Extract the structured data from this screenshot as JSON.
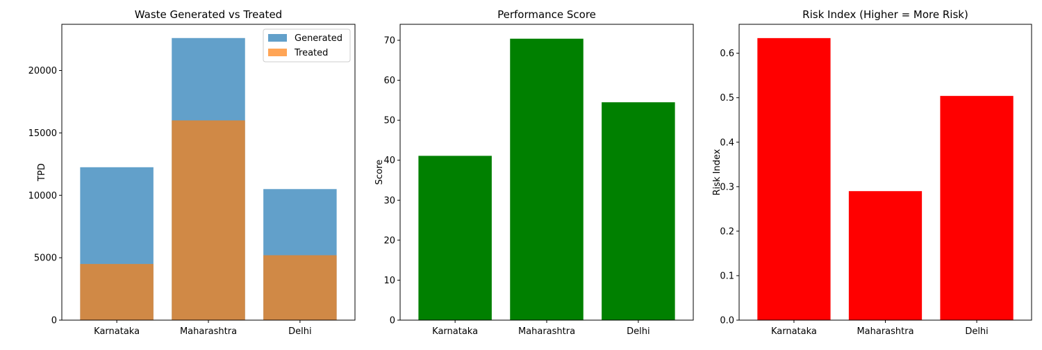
{
  "chart_data": [
    {
      "type": "bar",
      "title": "Waste Generated vs Treated",
      "xlabel": "",
      "ylabel": "TPD",
      "categories": [
        "Karnataka",
        "Maharashtra",
        "Delhi"
      ],
      "ylim": [
        0,
        23700
      ],
      "yticks": [
        0,
        5000,
        10000,
        15000,
        20000
      ],
      "overlay": true,
      "legend": "top-right",
      "series": [
        {
          "name": "Generated",
          "color": "#1f77b4",
          "opacity": 0.7,
          "values": [
            12250,
            22600,
            10500
          ]
        },
        {
          "name": "Treated",
          "color": "#ff7f0e",
          "opacity": 0.7,
          "values": [
            4500,
            16000,
            5200
          ]
        }
      ]
    },
    {
      "type": "bar",
      "title": "Performance Score",
      "xlabel": "",
      "ylabel": "Score",
      "categories": [
        "Karnataka",
        "Maharashtra",
        "Delhi"
      ],
      "ylim": [
        0,
        74
      ],
      "yticks": [
        0,
        10,
        20,
        30,
        40,
        50,
        60,
        70
      ],
      "series": [
        {
          "name": "",
          "color": "#008000",
          "opacity": 1,
          "values": [
            41.1,
            70.4,
            54.5
          ]
        }
      ]
    },
    {
      "type": "bar",
      "title": "Risk Index (Higher = More Risk)",
      "xlabel": "",
      "ylabel": "Risk Index",
      "categories": [
        "Karnataka",
        "Maharashtra",
        "Delhi"
      ],
      "ylim": [
        0,
        0.665
      ],
      "yticks": [
        0.0,
        0.1,
        0.2,
        0.3,
        0.4,
        0.5,
        0.6
      ],
      "tick_format": "1",
      "series": [
        {
          "name": "",
          "color": "#ff0000",
          "opacity": 1,
          "values": [
            0.634,
            0.29,
            0.504
          ]
        }
      ]
    }
  ]
}
